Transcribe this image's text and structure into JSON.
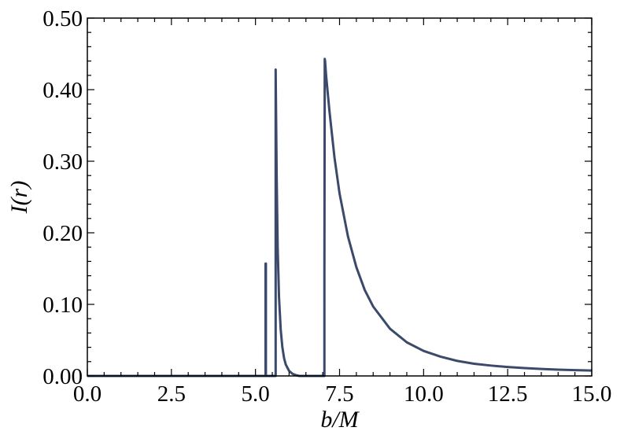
{
  "chart_data": {
    "type": "line",
    "xlabel": "b/M",
    "ylabel": "I(r)",
    "xlim": [
      0.0,
      15.0
    ],
    "ylim": [
      0.0,
      0.5
    ],
    "x_ticks": [
      "0.0",
      "2.5",
      "5.0",
      "7.5",
      "10.0",
      "12.5",
      "15.0"
    ],
    "y_ticks": [
      "0.00",
      "0.10",
      "0.20",
      "0.30",
      "0.40",
      "0.50"
    ],
    "grid": false,
    "line_color": "#3b4a6b",
    "series": [
      {
        "x": [
          0.0,
          5.3,
          5.3,
          5.31,
          5.31,
          5.6,
          5.6,
          5.63,
          5.66,
          5.7,
          5.75,
          5.8,
          5.85,
          5.9,
          6.0,
          6.1,
          6.2,
          6.3,
          7.05,
          7.05,
          7.06,
          7.07,
          7.1,
          7.2,
          7.35,
          7.5,
          7.75,
          8.0,
          8.25,
          8.5,
          9.0,
          9.5,
          10.0,
          10.5,
          11.0,
          11.5,
          12.0,
          12.5,
          13.0,
          13.5,
          14.0,
          14.5,
          15.0
        ],
        "y": [
          0.0,
          0.0,
          0.157,
          0.157,
          0.0,
          0.0,
          0.428,
          0.28,
          0.18,
          0.11,
          0.065,
          0.04,
          0.025,
          0.016,
          0.007,
          0.003,
          0.0012,
          0.0,
          0.0,
          0.15,
          0.443,
          0.44,
          0.42,
          0.37,
          0.305,
          0.255,
          0.195,
          0.152,
          0.12,
          0.097,
          0.066,
          0.047,
          0.035,
          0.027,
          0.021,
          0.017,
          0.0145,
          0.0125,
          0.011,
          0.0097,
          0.0088,
          0.0081,
          0.0075
        ]
      }
    ]
  }
}
